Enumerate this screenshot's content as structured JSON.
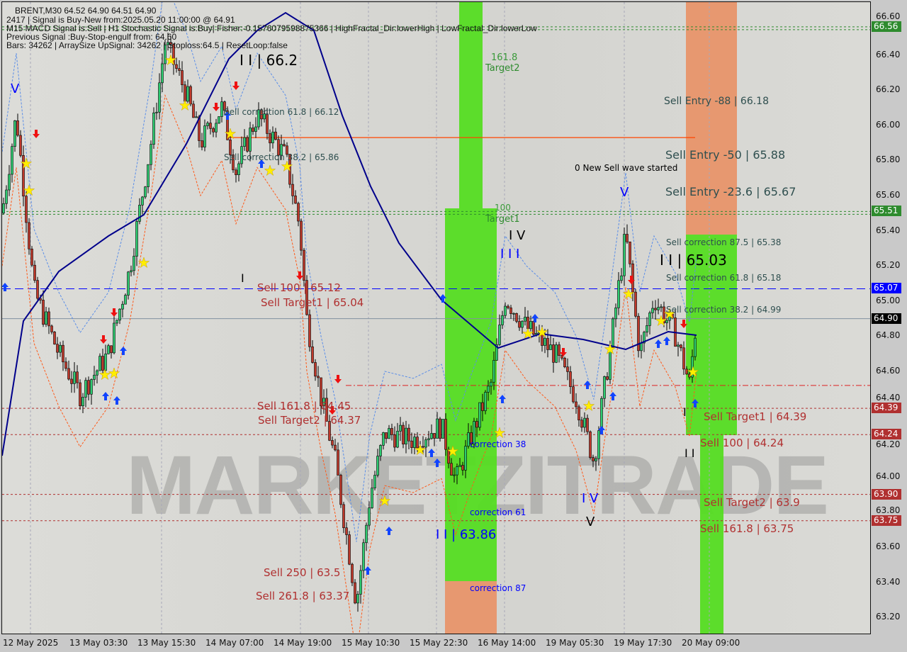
{
  "header": {
    "line1": "BRENT,M30  64.52 64.90 64.51 64.90",
    "line2": "2417 | Signal is Buy-New from:2025.05.20 11:00:00 @ 64.91",
    "line3": "M15 MACD Signal is:Sell | H1 Stochastic Signal is:Buy| Fisher:-0.1576079598875366 | HighFractal_Dir:lowerHigh | LowFractal_Dir:lowerLow",
    "line4": "Previous Signal :Buy-Stop-engulf from: 64.60",
    "line5": "Bars: 34262 | ArraySize UpSignal: 34262 | Stoploss:64.5 | ResetLoop:false"
  },
  "watermark": "MARKETZITRADE",
  "colors": {
    "bull": "#2ecc71",
    "bear": "#c0392b",
    "ma": "#00008b",
    "green_zone": "#55dd22",
    "orange_zone": "#e8956a",
    "tag_green": "#2e8b2e",
    "tag_red": "#b03030",
    "tag_blue": "#0000ff",
    "tag_black": "#000000"
  },
  "annotations": [
    {
      "text": "I I | 66.2",
      "color": "#000"
    },
    {
      "text": "Sell correction 61.8 | 66.12",
      "color": "#2f4f4f"
    },
    {
      "text": "Sell correction 38.2 | 65.86",
      "color": "#2f4f4f"
    },
    {
      "text": "161.8",
      "color": "#3a9a3a"
    },
    {
      "text": "Target2",
      "color": "#2e8b2e"
    },
    {
      "text": "100",
      "color": "#3a9a3a"
    },
    {
      "text": "Target1",
      "color": "#2e8b2e"
    },
    {
      "text": "Sell Entry -88 | 66.18",
      "color": "#2f4f4f"
    },
    {
      "text": "Sell Entry -50 | 65.88",
      "color": "#2f4f4f"
    },
    {
      "text": "Sell Entry -23.6 | 65.67",
      "color": "#2f4f4f"
    },
    {
      "text": "0 New Sell wave started",
      "color": "#000"
    },
    {
      "text": "V",
      "color": "#0000ff"
    },
    {
      "text": "V",
      "color": "#0000ff"
    },
    {
      "text": "I V",
      "color": "#000"
    },
    {
      "text": "I I I",
      "color": "#0000ff"
    },
    {
      "text": "I I | 65.03",
      "color": "#000"
    },
    {
      "text": "Sell correction 87.5 | 65.38",
      "color": "#2f4f4f"
    },
    {
      "text": "Sell correction 61.8 | 65.18",
      "color": "#2f4f4f"
    },
    {
      "text": "Sell correction 38.2 | 64.99",
      "color": "#2f4f4f"
    },
    {
      "text": "I",
      "color": "#000"
    },
    {
      "text": "Sell 100 | 65.12",
      "color": "#b03030"
    },
    {
      "text": "Sell Target1 | 65.04",
      "color": "#b03030"
    },
    {
      "text": "Sell 161.8 | 64.45",
      "color": "#b03030"
    },
    {
      "text": "Sell Target2 | 64.37",
      "color": "#b03030"
    },
    {
      "text": "Sell Target1 | 64.39",
      "color": "#b03030"
    },
    {
      "text": "Sell 100 | 64.24",
      "color": "#b03030"
    },
    {
      "text": "Sell Target2 | 63.9",
      "color": "#b03030"
    },
    {
      "text": "Sell 161.8 | 63.75",
      "color": "#b03030"
    },
    {
      "text": "I",
      "color": "#000"
    },
    {
      "text": "I I",
      "color": "#000"
    },
    {
      "text": "I V",
      "color": "#0000ff"
    },
    {
      "text": "V",
      "color": "#000"
    },
    {
      "text": "correction 38",
      "color": "#0000ff"
    },
    {
      "text": "correction 61",
      "color": "#0000ff"
    },
    {
      "text": "correction 87",
      "color": "#0000ff"
    },
    {
      "text": "I I | 63.86",
      "color": "#0000ff"
    },
    {
      "text": "Sell  250 | 63.5",
      "color": "#b03030"
    },
    {
      "text": "Sell  261.8 | 63.37",
      "color": "#b03030"
    }
  ],
  "chart_data": {
    "type": "candlestick",
    "symbol": "BRENT",
    "timeframe": "M30",
    "ylim": [
      63.15,
      66.65
    ],
    "y_ticks": [
      "66.60",
      "66.40",
      "66.20",
      "66.00",
      "65.80",
      "65.60",
      "65.40",
      "65.20",
      "65.00",
      "64.80",
      "64.60",
      "64.40",
      "64.20",
      "64.00",
      "63.80",
      "63.60",
      "63.40",
      "63.20"
    ],
    "x_ticks": [
      "12 May 2025",
      "13 May 03:30",
      "13 May 15:30",
      "14 May 07:00",
      "14 May 19:00",
      "15 May 10:30",
      "15 May 22:30",
      "16 May 14:00",
      "19 May 05:30",
      "19 May 17:30",
      "20 May 09:00"
    ],
    "price_path": [
      [
        "12 May 10:30",
        65.5
      ],
      [
        "12 May 13:00",
        66.06
      ],
      [
        "12 May 16:00",
        65.06
      ],
      [
        "12 May 20:30",
        64.7
      ],
      [
        "13 May 00:30",
        64.47
      ],
      [
        "13 May 05:30",
        64.7
      ],
      [
        "13 May 09:30",
        65.18
      ],
      [
        "13 May 13:00",
        65.9
      ],
      [
        "13 May 15:30",
        66.47
      ],
      [
        "13 May 20:30",
        66.18
      ],
      [
        "13 May 23:30",
        65.9
      ],
      [
        "14 May 04:00",
        66.1
      ],
      [
        "14 May 07:30",
        65.74
      ],
      [
        "14 May 11:00",
        66.06
      ],
      [
        "14 May 16:00",
        65.82
      ],
      [
        "14 May 18:30",
        65.42
      ],
      [
        "14 May 20:00",
        64.9
      ],
      [
        "14 May 23:30",
        64.45
      ],
      [
        "15 May 02:30",
        64.09
      ],
      [
        "15 May 05:30",
        63.56
      ],
      [
        "15 May 07:30",
        63.28
      ],
      [
        "15 May 10:30",
        63.89
      ],
      [
        "15 May 13:00",
        64.25
      ],
      [
        "15 May 18:00",
        64.21
      ],
      [
        "15 May 23:30",
        64.29
      ],
      [
        "16 May 02:30",
        63.97
      ],
      [
        "16 May 06:00",
        64.21
      ],
      [
        "16 May 10:30",
        64.53
      ],
      [
        "16 May 14:00",
        65.02
      ],
      [
        "16 May 18:00",
        64.85
      ],
      [
        "16 May 23:00",
        64.7
      ],
      [
        "19 May 06:00",
        64.45
      ],
      [
        "19 May 09:00",
        64.09
      ],
      [
        "19 May 12:00",
        64.78
      ],
      [
        "19 May 14:30",
        65.38
      ],
      [
        "19 May 17:30",
        64.7
      ],
      [
        "19 May 20:00",
        65.02
      ],
      [
        "20 May 01:00",
        64.81
      ],
      [
        "20 May 04:00",
        64.53
      ],
      [
        "20 May 11:00",
        64.9
      ]
    ],
    "price_lines": [
      {
        "label": "66.56",
        "price": 66.56,
        "style": "dotted",
        "color": "#2e8b2e"
      },
      {
        "label": "65.51",
        "price": 65.51,
        "style": "dotted",
        "color": "#2e8b2e"
      },
      {
        "label": "65.07",
        "price": 65.07,
        "style": "dashed",
        "color": "#0000ff"
      },
      {
        "label": "64.90",
        "price": 64.9,
        "style": "solid",
        "color": "#000000"
      },
      {
        "label": "64.39",
        "price": 64.39,
        "style": "dotted",
        "color": "#b03030"
      },
      {
        "label": "64.24",
        "price": 64.24,
        "style": "dotted",
        "color": "#b03030"
      },
      {
        "label": "63.90",
        "price": 63.9,
        "style": "dotted",
        "color": "#b03030"
      },
      {
        "label": "63.75",
        "price": 63.75,
        "style": "dotted",
        "color": "#b03030"
      }
    ],
    "support_line": 64.52,
    "resistance_line": 65.93
  }
}
